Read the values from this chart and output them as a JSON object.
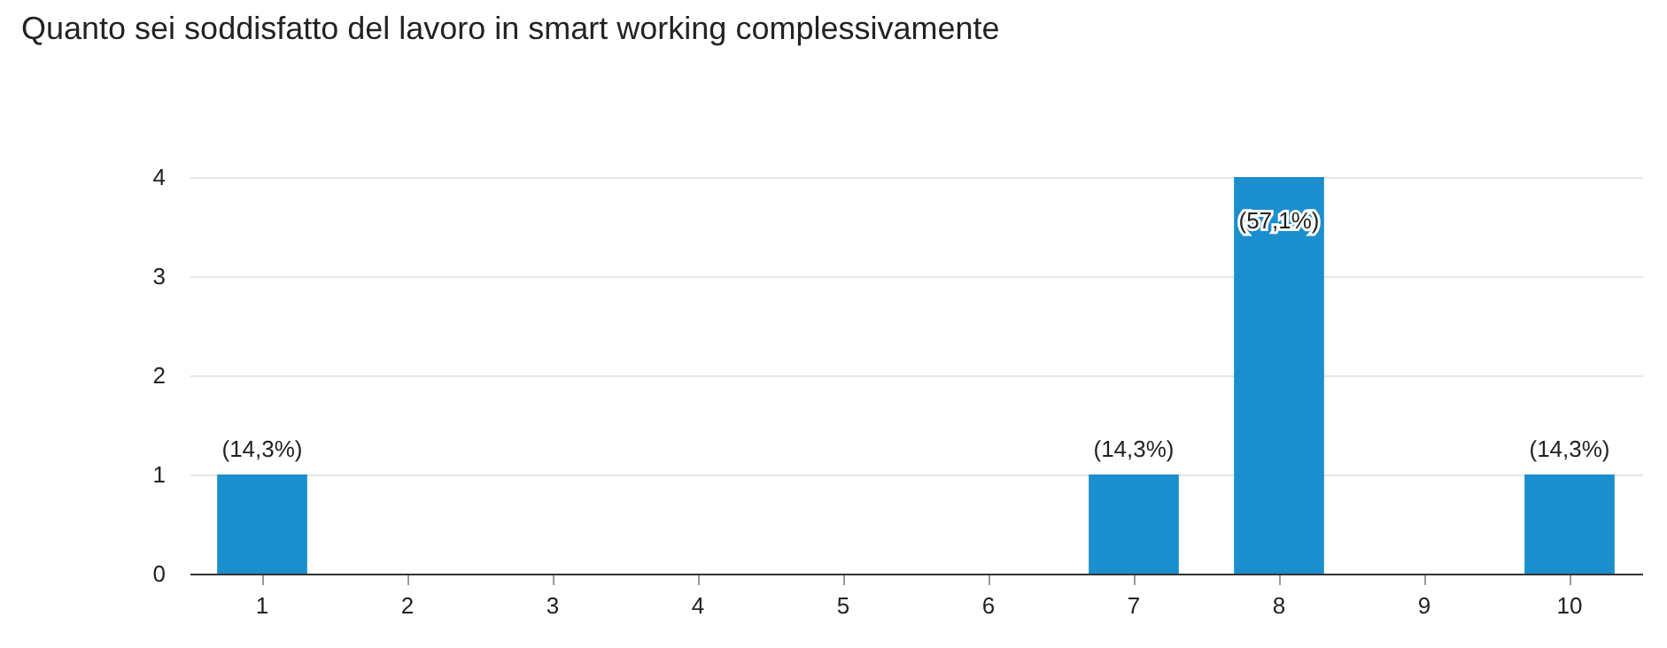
{
  "chart_data": {
    "type": "bar",
    "title": "Quanto sei soddisfatto del lavoro in smart working complessivamente",
    "categories": [
      "1",
      "2",
      "3",
      "4",
      "5",
      "6",
      "7",
      "8",
      "9",
      "10"
    ],
    "values": [
      1,
      0,
      0,
      0,
      0,
      0,
      1,
      4,
      0,
      1
    ],
    "annotations": [
      {
        "text": "(14,3%)",
        "x": "1",
        "y": 1
      },
      {
        "text": "(14,3%)",
        "x": "7",
        "y": 1
      },
      {
        "text": "(57,1%)",
        "x": "8",
        "y": 4
      },
      {
        "text": "(14,3%)",
        "x": "10",
        "y": 1
      }
    ],
    "color": "#1b8ecd",
    "ylim": [
      0,
      4
    ],
    "yticks": [
      0,
      1,
      2,
      3,
      4
    ],
    "grid": true
  }
}
